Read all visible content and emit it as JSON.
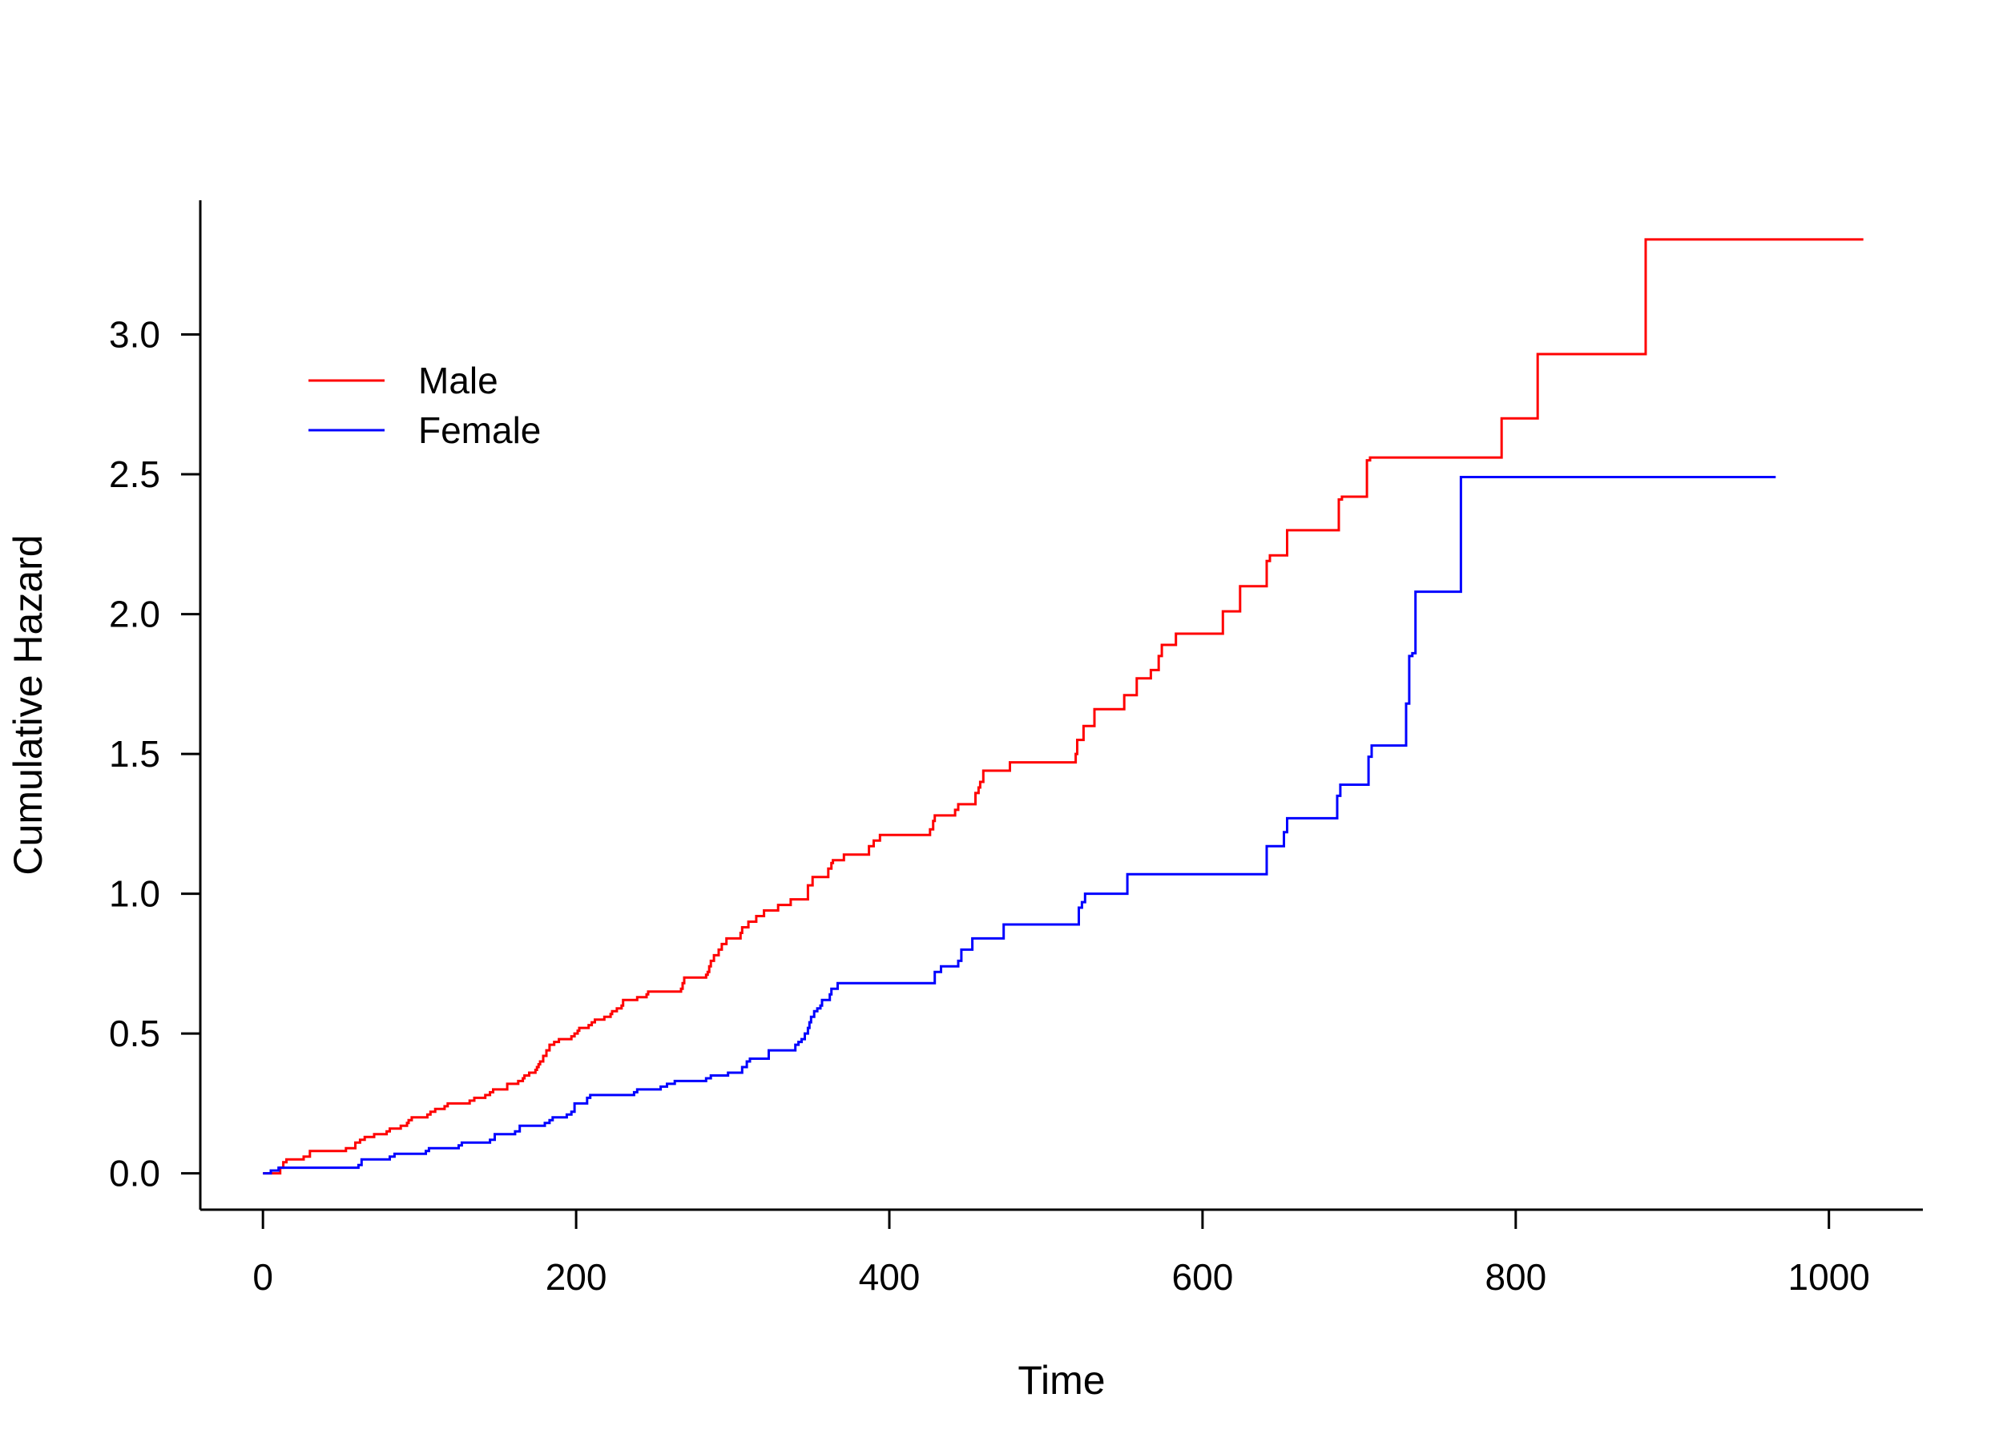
{
  "chart_data": {
    "type": "line",
    "step": true,
    "title": "",
    "xlabel": "Time",
    "ylabel": "Cumulative Hazard",
    "xlim": [
      -40,
      1060
    ],
    "ylim": [
      -0.13,
      3.48
    ],
    "grid": false,
    "legend_position": "top-left",
    "x_ticks": [
      {
        "value": 0,
        "label": "0"
      },
      {
        "value": 200,
        "label": "200"
      },
      {
        "value": 400,
        "label": "400"
      },
      {
        "value": 600,
        "label": "600"
      },
      {
        "value": 800,
        "label": "800"
      },
      {
        "value": 1000,
        "label": "1000"
      }
    ],
    "y_ticks": [
      {
        "value": 0.0,
        "label": "0.0"
      },
      {
        "value": 0.5,
        "label": "0.5"
      },
      {
        "value": 1.0,
        "label": "1.0"
      },
      {
        "value": 1.5,
        "label": "1.5"
      },
      {
        "value": 2.0,
        "label": "2.0"
      },
      {
        "value": 2.5,
        "label": "2.5"
      },
      {
        "value": 3.0,
        "label": "3.0"
      }
    ],
    "series": [
      {
        "name": "Male",
        "color": "#ff0000",
        "x": [
          0,
          11,
          13,
          15,
          26,
          30,
          53,
          59,
          62,
          65,
          71,
          79,
          81,
          88,
          92,
          93,
          95,
          105,
          107,
          110,
          116,
          118,
          132,
          135,
          142,
          145,
          147,
          156,
          163,
          166,
          167,
          170,
          174,
          175,
          176,
          177,
          179,
          181,
          183,
          186,
          189,
          197,
          199,
          201,
          202,
          208,
          210,
          212,
          218,
          222,
          223,
          226,
          229,
          230,
          239,
          245,
          246,
          267,
          268,
          269,
          283,
          284,
          285,
          286,
          288,
          291,
          293,
          296,
          305,
          306,
          310,
          315,
          320,
          329,
          337,
          348,
          351,
          361,
          363,
          364,
          371,
          387,
          390,
          394,
          426,
          428,
          429,
          442,
          444,
          455,
          457,
          458,
          460,
          477,
          519,
          520,
          524,
          531,
          550,
          558,
          567,
          572,
          574,
          583,
          613,
          624,
          641,
          643,
          654,
          687,
          689,
          705,
          707,
          791,
          814,
          883,
          1022
        ],
        "y": [
          0.0,
          0.02,
          0.04,
          0.05,
          0.06,
          0.08,
          0.09,
          0.11,
          0.12,
          0.13,
          0.14,
          0.15,
          0.16,
          0.17,
          0.18,
          0.19,
          0.2,
          0.21,
          0.22,
          0.23,
          0.24,
          0.25,
          0.26,
          0.27,
          0.28,
          0.29,
          0.3,
          0.32,
          0.33,
          0.34,
          0.35,
          0.36,
          0.37,
          0.38,
          0.39,
          0.4,
          0.42,
          0.44,
          0.46,
          0.47,
          0.48,
          0.49,
          0.5,
          0.51,
          0.52,
          0.53,
          0.54,
          0.55,
          0.56,
          0.57,
          0.58,
          0.59,
          0.6,
          0.62,
          0.63,
          0.64,
          0.65,
          0.66,
          0.68,
          0.7,
          0.71,
          0.72,
          0.74,
          0.76,
          0.78,
          0.8,
          0.82,
          0.84,
          0.86,
          0.88,
          0.9,
          0.92,
          0.94,
          0.96,
          0.98,
          1.03,
          1.06,
          1.09,
          1.11,
          1.12,
          1.14,
          1.17,
          1.19,
          1.21,
          1.23,
          1.26,
          1.28,
          1.3,
          1.32,
          1.36,
          1.38,
          1.4,
          1.44,
          1.47,
          1.5,
          1.55,
          1.6,
          1.66,
          1.71,
          1.77,
          1.8,
          1.85,
          1.89,
          1.93,
          2.01,
          2.1,
          2.19,
          2.21,
          2.3,
          2.41,
          2.42,
          2.55,
          2.56,
          2.7,
          2.93,
          3.34,
          3.34
        ]
      },
      {
        "name": "Female",
        "color": "#0000ff",
        "x": [
          0,
          5,
          10,
          61,
          63,
          81,
          84,
          104,
          106,
          125,
          127,
          145,
          148,
          161,
          164,
          180,
          183,
          185,
          194,
          197,
          199,
          207,
          209,
          237,
          239,
          254,
          258,
          263,
          283,
          286,
          297,
          306,
          309,
          311,
          323,
          340,
          342,
          344,
          346,
          348,
          349,
          350,
          352,
          354,
          356,
          357,
          362,
          363,
          367,
          371,
          429,
          433,
          444,
          446,
          453,
          473,
          521,
          523,
          525,
          552,
          641,
          652,
          654,
          686,
          688,
          706,
          708,
          730,
          732,
          734,
          736,
          765,
          767,
          966
        ],
        "y": [
          0.0,
          0.01,
          0.02,
          0.03,
          0.05,
          0.06,
          0.07,
          0.08,
          0.09,
          0.1,
          0.11,
          0.12,
          0.14,
          0.15,
          0.17,
          0.18,
          0.19,
          0.2,
          0.21,
          0.22,
          0.25,
          0.27,
          0.28,
          0.29,
          0.3,
          0.31,
          0.32,
          0.33,
          0.34,
          0.35,
          0.36,
          0.38,
          0.4,
          0.41,
          0.44,
          0.46,
          0.47,
          0.48,
          0.5,
          0.52,
          0.54,
          0.56,
          0.58,
          0.59,
          0.6,
          0.62,
          0.64,
          0.66,
          0.68,
          0.68,
          0.72,
          0.74,
          0.76,
          0.8,
          0.84,
          0.89,
          0.95,
          0.97,
          1.0,
          1.07,
          1.17,
          1.22,
          1.27,
          1.35,
          1.39,
          1.49,
          1.53,
          1.68,
          1.85,
          1.86,
          2.08,
          2.49,
          2.49,
          2.49
        ]
      }
    ]
  }
}
